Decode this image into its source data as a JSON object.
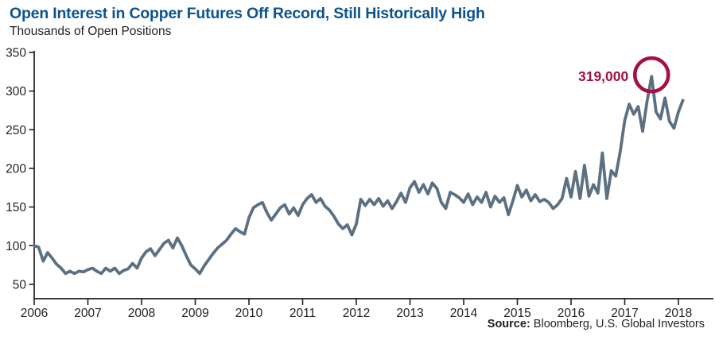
{
  "header": {
    "title": "Open Interest in Copper Futures Off Record, Still Historically High",
    "subtitle": "Thousands of Open Positions"
  },
  "source": {
    "label": "Source:",
    "text": " Bloomberg, U.S. Global Investors"
  },
  "annotation": {
    "peak_label": "319,000",
    "peak_value": 319,
    "peak_period": "mid-2017"
  },
  "colors": {
    "title_blue": "#0d538e",
    "line": "#5b7183",
    "accent_crimson": "#a31142",
    "axis_text": "#231f20",
    "background": "#ffffff"
  },
  "chart_data": {
    "type": "line",
    "title": "Open Interest in Copper Futures Off Record, Still Historically High",
    "ylabel": "Thousands of Open Positions",
    "xlabel": "",
    "ylim": [
      50,
      350
    ],
    "ytick_step": 50,
    "yticks": [
      350,
      300,
      250,
      200,
      150,
      100,
      50
    ],
    "xticks": [
      2006,
      2007,
      2008,
      2009,
      2010,
      2011,
      2012,
      2013,
      2014,
      2015,
      2016,
      2017,
      2018
    ],
    "grid": false,
    "legend": false,
    "frequency": "monthly",
    "start_year": 2006,
    "start_month": 1,
    "series": [
      {
        "name": "Copper futures open interest (thousands of positions)",
        "values": [
          100,
          98,
          80,
          91,
          84,
          76,
          71,
          64,
          67,
          64,
          67,
          66,
          69,
          71,
          67,
          64,
          71,
          67,
          71,
          64,
          68,
          70,
          77,
          71,
          84,
          92,
          96,
          87,
          95,
          103,
          107,
          97,
          110,
          100,
          87,
          75,
          70,
          64,
          74,
          82,
          90,
          97,
          102,
          107,
          115,
          122,
          118,
          115,
          136,
          149,
          153,
          156,
          143,
          133,
          141,
          149,
          153,
          141,
          149,
          139,
          153,
          161,
          166,
          156,
          161,
          151,
          146,
          138,
          128,
          122,
          127,
          114,
          128,
          160,
          152,
          160,
          153,
          161,
          151,
          158,
          148,
          157,
          168,
          156,
          175,
          183,
          169,
          179,
          167,
          181,
          174,
          156,
          148,
          169,
          166,
          162,
          156,
          167,
          153,
          163,
          156,
          169,
          150,
          164,
          156,
          162,
          140,
          158,
          178,
          163,
          172,
          158,
          166,
          157,
          160,
          156,
          148,
          153,
          161,
          187,
          163,
          196,
          161,
          204,
          164,
          179,
          168,
          220,
          161,
          197,
          190,
          222,
          262,
          283,
          270,
          280,
          248,
          287,
          319,
          273,
          264,
          291,
          261,
          252,
          273,
          288
        ]
      }
    ]
  }
}
